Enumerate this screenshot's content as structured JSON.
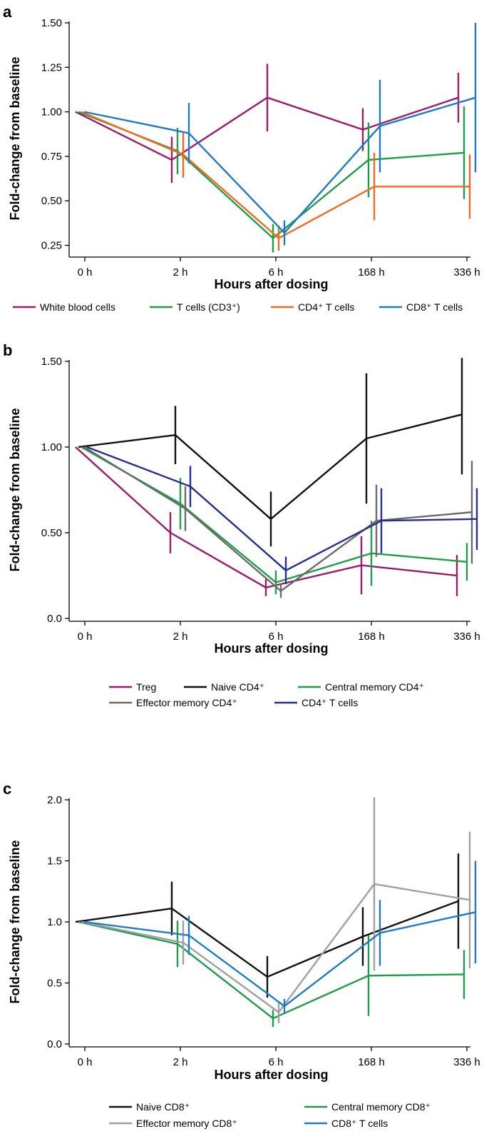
{
  "chart_data": [
    {
      "panel": "a",
      "type": "line",
      "categories": [
        "0 h",
        "2 h",
        "6 h",
        "168 h",
        "336 h"
      ],
      "xlabel": "Hours after dosing",
      "ylabel": "Fold-change from baseline",
      "ylim": [
        0.2,
        1.5
      ],
      "yticks": [
        "0.25",
        "0.50",
        "0.75",
        "1.00",
        "1.25",
        "1.50"
      ],
      "legend_position": "bottom",
      "series": [
        {
          "name": "White blood cells",
          "color": "#9b1b6b",
          "values": [
            1.0,
            0.73,
            1.08,
            0.9,
            1.08
          ],
          "err": [
            0,
            0.13,
            0.19,
            0.12,
            0.14
          ]
        },
        {
          "name": "T cells (CD3⁺)",
          "color": "#1e9e48",
          "values": [
            1.0,
            0.78,
            0.29,
            0.73,
            0.77
          ],
          "err": [
            0,
            0.13,
            0.08,
            0.21,
            0.26
          ]
        },
        {
          "name": "CD4⁺ T cells",
          "color": "#f26a22",
          "values": [
            1.0,
            0.76,
            0.29,
            0.58,
            0.58
          ],
          "err": [
            0,
            0.13,
            0.07,
            0.19,
            0.18
          ]
        },
        {
          "name": "CD8⁺ T cells",
          "color": "#1e7bc4",
          "values": [
            1.0,
            0.88,
            0.32,
            0.92,
            1.08
          ],
          "err": [
            0,
            0.17,
            0.07,
            0.26,
            0.42
          ]
        }
      ]
    },
    {
      "panel": "b",
      "type": "line",
      "categories": [
        "0 h",
        "2 h",
        "6 h",
        "168 h",
        "336 h"
      ],
      "xlabel": "Hours after dosing",
      "ylabel": "Fold-change from baseline",
      "ylim": [
        0.0,
        1.5
      ],
      "yticks": [
        "0.0",
        "0.50",
        "1.00",
        "1.50"
      ],
      "legend_position": "bottom",
      "series": [
        {
          "name": "Treg",
          "color": "#9b1b6b",
          "values": [
            1.0,
            0.5,
            0.18,
            0.31,
            0.25
          ],
          "err": [
            0,
            0.12,
            0.05,
            0.17,
            0.12
          ]
        },
        {
          "name": "Naive CD4⁺",
          "color": "#111111",
          "values": [
            1.0,
            1.07,
            0.58,
            1.05,
            1.19
          ],
          "err": [
            0,
            0.17,
            0.16,
            0.38,
            0.35
          ]
        },
        {
          "name": "Central memory CD4⁺",
          "color": "#1e9e48",
          "values": [
            1.0,
            0.67,
            0.21,
            0.38,
            0.33
          ],
          "err": [
            0,
            0.15,
            0.07,
            0.19,
            0.11
          ]
        },
        {
          "name": "Effector memory CD4⁺",
          "color": "#6b6b6b",
          "values": [
            1.0,
            0.64,
            0.16,
            0.57,
            0.62
          ],
          "err": [
            0,
            0.13,
            0.04,
            0.21,
            0.3
          ]
        },
        {
          "name": "CD4⁺ T cells",
          "color": "#262f8c",
          "values": [
            1.0,
            0.77,
            0.28,
            0.57,
            0.58
          ],
          "err": [
            0,
            0.12,
            0.08,
            0.19,
            0.18
          ]
        }
      ]
    },
    {
      "panel": "c",
      "type": "line",
      "categories": [
        "0 h",
        "2 h",
        "6 h",
        "168 h",
        "336 h"
      ],
      "xlabel": "Hours after dosing",
      "ylabel": "Fold-change from baseline",
      "ylim": [
        0.0,
        2.0
      ],
      "yticks": [
        "0.0",
        "0.5",
        "1.0",
        "1.5",
        "2.0"
      ],
      "legend_position": "bottom",
      "series": [
        {
          "name": "Naive CD8⁺",
          "color": "#111111",
          "values": [
            1.0,
            1.11,
            0.55,
            0.88,
            1.17
          ],
          "err": [
            0,
            0.22,
            0.17,
            0.24,
            0.39
          ]
        },
        {
          "name": "Central memory CD8⁺",
          "color": "#1e9e48",
          "values": [
            1.0,
            0.82,
            0.21,
            0.56,
            0.57
          ],
          "err": [
            0,
            0.19,
            0.07,
            0.33,
            0.2
          ]
        },
        {
          "name": "Effector memory CD8⁺",
          "color": "#a0a0a0",
          "values": [
            1.0,
            0.83,
            0.26,
            1.31,
            1.18
          ],
          "err": [
            0,
            0.18,
            0.09,
            0.71,
            0.56
          ]
        },
        {
          "name": "CD8⁺ T cells",
          "color": "#1e7bc4",
          "values": [
            1.0,
            0.89,
            0.31,
            0.91,
            1.08
          ],
          "err": [
            0,
            0.16,
            0.06,
            0.27,
            0.42
          ]
        }
      ]
    }
  ]
}
